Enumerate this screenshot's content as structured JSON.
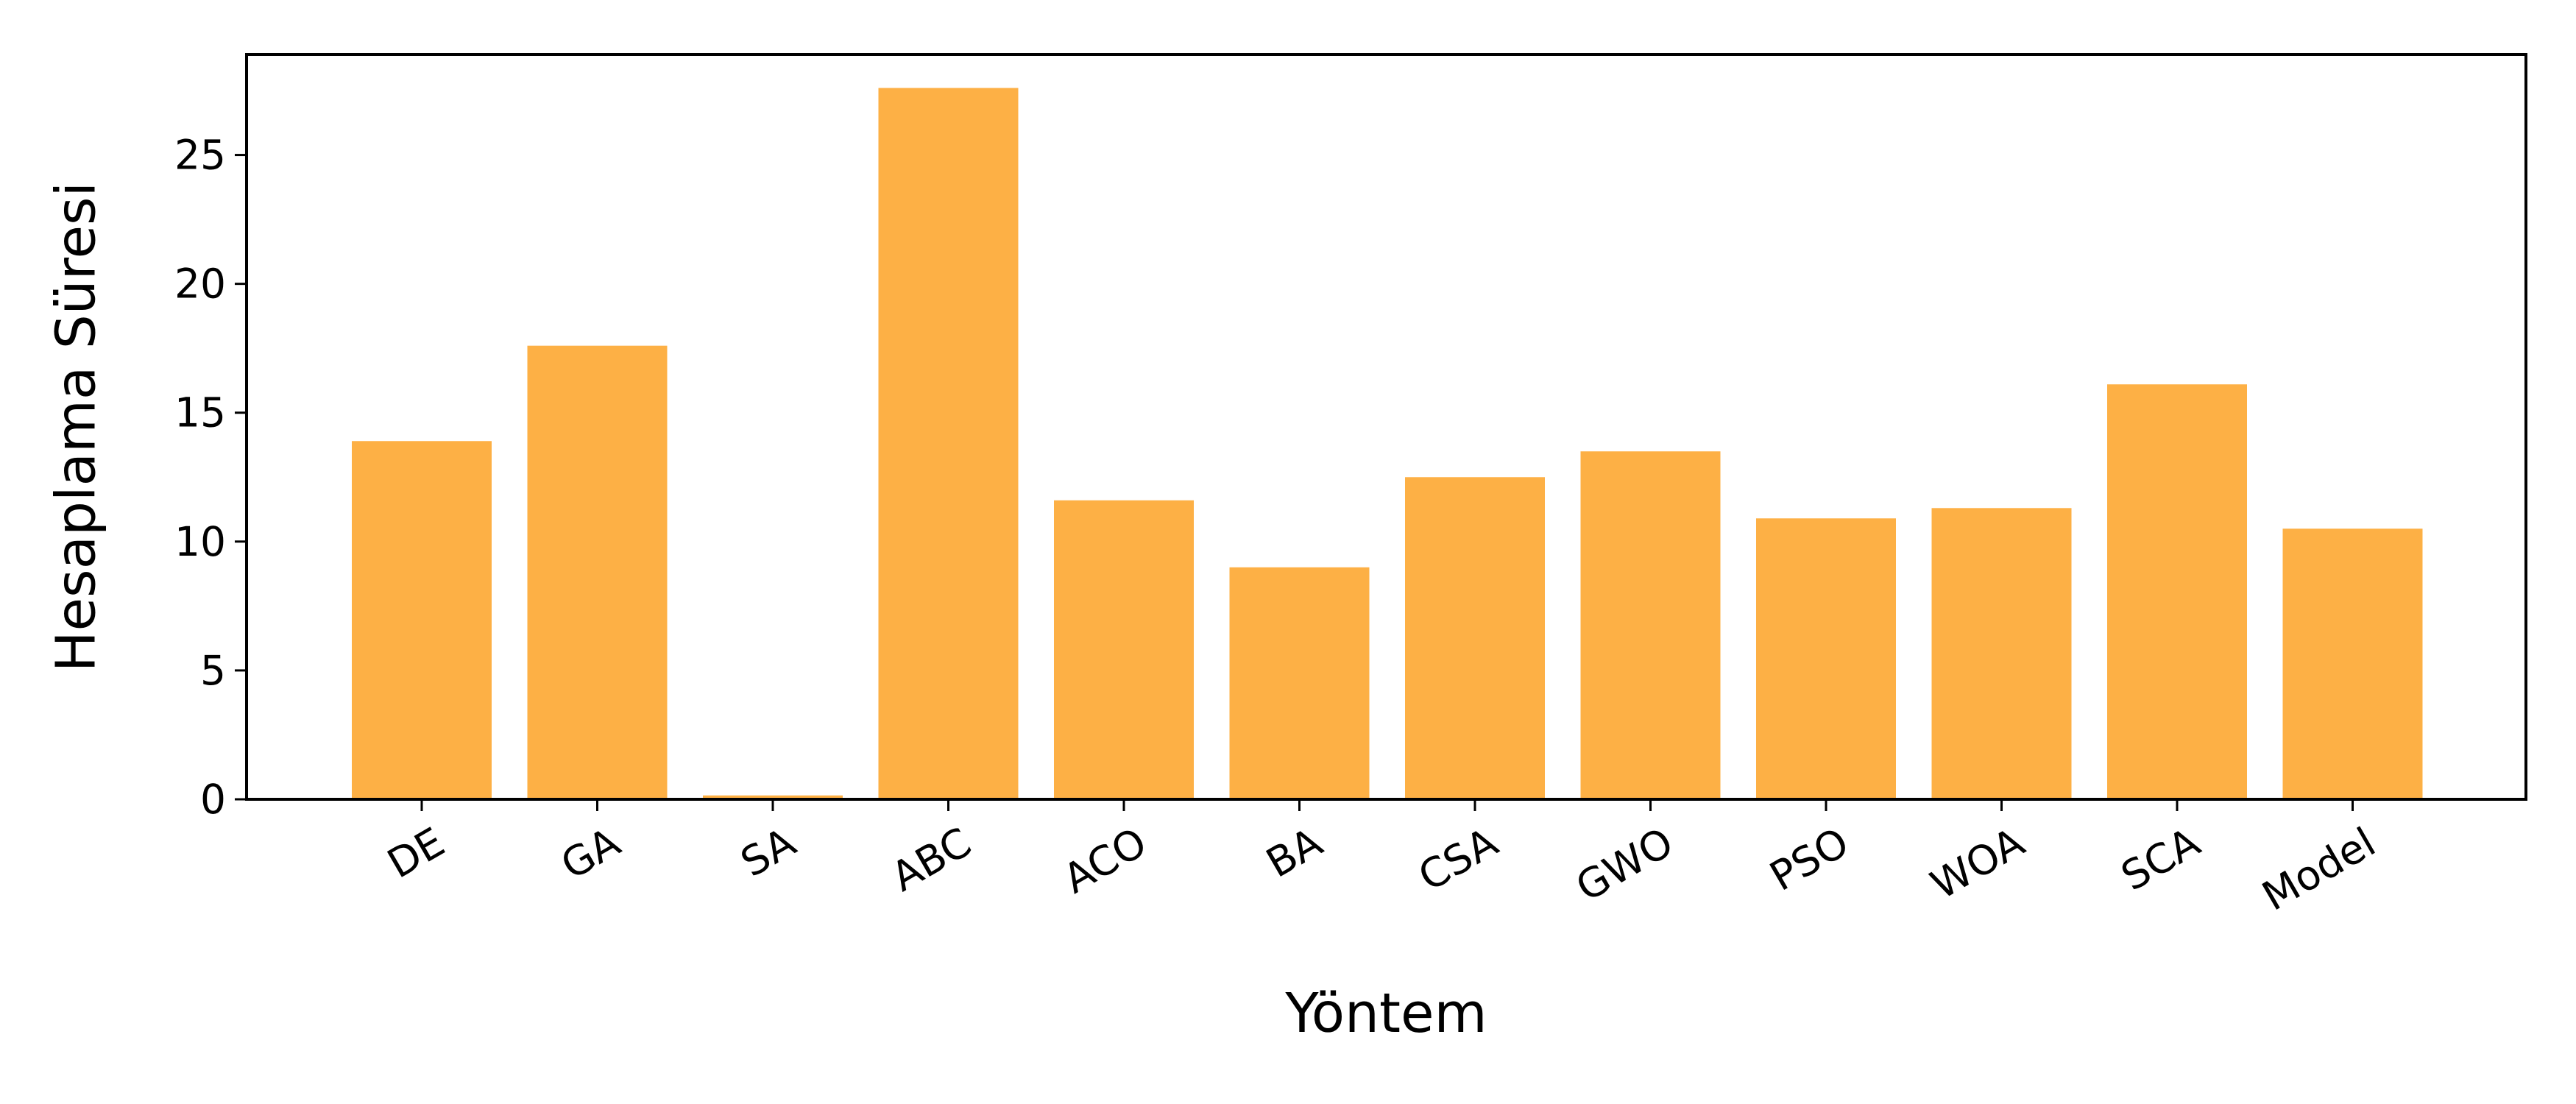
{
  "chart_data": {
    "type": "bar",
    "title": "",
    "xlabel": "Yöntem",
    "ylabel": "Hesaplama Süresi",
    "categories": [
      "DE",
      "GA",
      "SA",
      "ABC",
      "ACO",
      "BA",
      "CSA",
      "GWO",
      "PSO",
      "WOA",
      "SCA",
      "Model"
    ],
    "values": [
      13.9,
      17.6,
      0.15,
      27.6,
      11.6,
      9.0,
      12.5,
      13.5,
      10.9,
      11.3,
      16.1,
      10.5
    ],
    "ylim": [
      0,
      28.9
    ],
    "yticks": [
      0,
      5,
      10,
      15,
      20,
      25
    ],
    "grid": false,
    "bar_color": "#FDB045"
  }
}
